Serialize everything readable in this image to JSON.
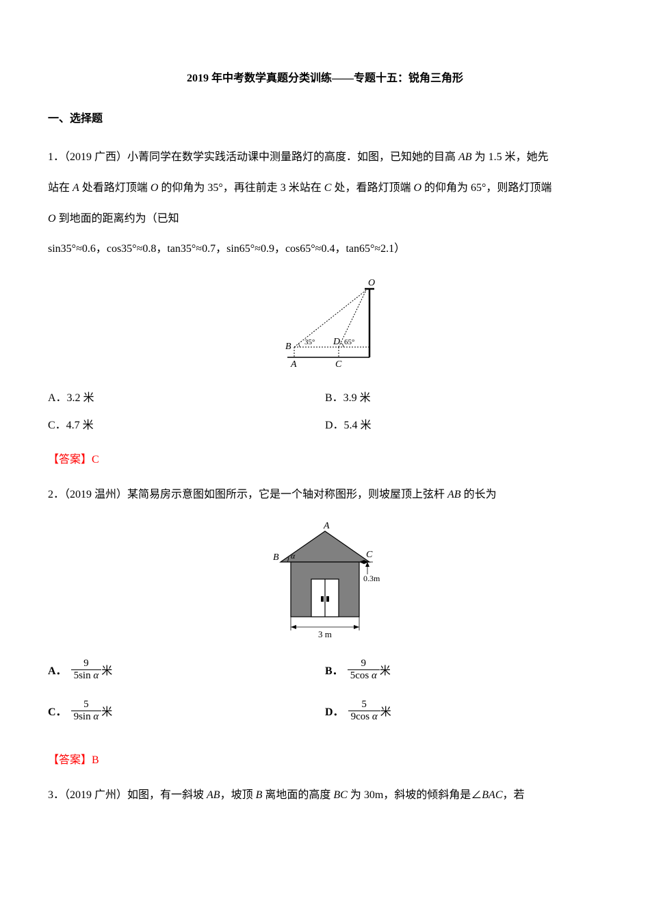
{
  "document": {
    "title": "2019 年中考数学真题分类训练——专题十五：锐角三角形",
    "section_header": "一、选择题",
    "q1": {
      "text_line1": "1．（2019 广西）小菁同学在数学实践活动课中测量路灯的高度．如图，已知她的目高 <i>AB</i> 为 1.5 米，她先",
      "text_line2": "站在 <i>A</i> 处看路灯顶端 <i>O</i> 的仰角为 35°，再往前走 3 米站在 <i>C</i> 处，看路灯顶端 <i>O</i> 的仰角为 65°，则路灯顶端",
      "text_line3": "<i>O</i> 到地面的距离约为（已知",
      "text_line4": "sin35°≈0.6，cos35°≈0.8，tan35°≈0.7，sin65°≈0.9，cos65°≈0.4，tan65°≈2.1）",
      "options": {
        "a": "A．3.2 米",
        "b": "B．3.9 米",
        "c": "C．4.7 米",
        "d": "D．5.4 米"
      },
      "answer": "【答案】C",
      "figure": {
        "label_O": "O",
        "label_B": "B",
        "label_D": "D",
        "label_A": "A",
        "label_C": "C",
        "angle1": "35°",
        "angle2": "65°"
      }
    },
    "q2": {
      "text": "2．（2019 温州）某简易房示意图如图所示，它是一个轴对称图形，则坡屋顶上弦杆 <i>AB</i> 的长为",
      "options": {
        "a_num": "9",
        "a_den": "5sin α",
        "b_num": "9",
        "b_den": "5cos α",
        "c_num": "5",
        "c_den": "9sin α",
        "d_num": "5",
        "d_den": "9cos α",
        "unit": "米",
        "prefix_a": "A．",
        "prefix_b": "B．",
        "prefix_c": "C．",
        "prefix_d": "D．"
      },
      "answer": "【答案】B",
      "figure": {
        "label_A": "A",
        "label_B": "B",
        "label_C": "C",
        "label_alpha": "α",
        "dim_h": "0.3m",
        "dim_w": "3 m"
      }
    },
    "q3": {
      "text": "3．（2019 广州）如图，有一斜坡 <i>AB</i>，坡顶 <i>B</i> 离地面的高度 <i>BC</i> 为 30m，斜坡的倾斜角是∠<i>BAC</i>，若"
    }
  },
  "colors": {
    "text": "#000000",
    "answer": "#ff0000",
    "figure_fill": "#808080",
    "figure_stroke": "#000000",
    "background": "#ffffff"
  }
}
